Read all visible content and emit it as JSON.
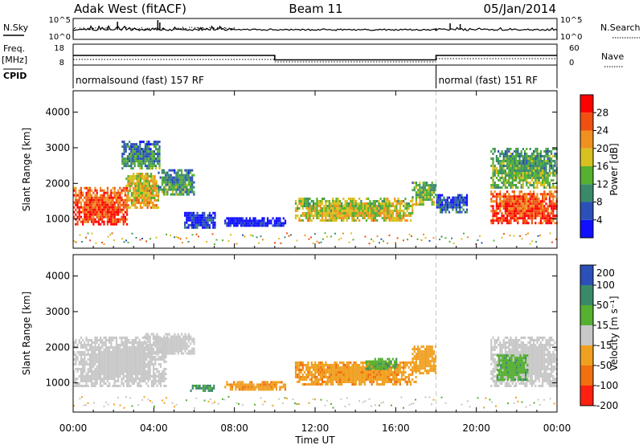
{
  "header": {
    "station": "Adak West (fitACF)",
    "beam": "Beam 11",
    "date": "05/Jan/2014"
  },
  "summary_panels": {
    "nsky_label": "N.Sky",
    "nsearch_label": "N.Search",
    "nsky_ticks": [
      "10^5",
      "10^0"
    ],
    "freq_label_top": "Freq.",
    "freq_label_unit": "[MHz]",
    "freq_ticks": [
      "18",
      "8"
    ],
    "nave_label": "Nave",
    "nave_ticks": [
      "60",
      "0"
    ],
    "cpid_label": "CPID",
    "cpid_segments": [
      {
        "label": "normalsound (fast) 157 RF",
        "start_h": 0,
        "end_h": 18
      },
      {
        "label": "normal (fast) 151 RF",
        "start_h": 18,
        "end_h": 24
      }
    ],
    "freq_steps": [
      {
        "start_h": 0,
        "end_h": 10,
        "mhz": 12.6
      },
      {
        "start_h": 10,
        "end_h": 18,
        "mhz": 10.5
      },
      {
        "start_h": 18,
        "end_h": 24,
        "mhz": 12.6
      }
    ]
  },
  "chart_data": [
    {
      "type": "heatmap",
      "name": "power",
      "ylabel": "Slant Range [km]",
      "xlabel": "Time UT",
      "ylim": [
        180,
        4600
      ],
      "xlim_hours": [
        0,
        24
      ],
      "y_ticks": [
        1000,
        2000,
        3000,
        4000
      ],
      "x_tick_labels": [
        "00:00",
        "04:00",
        "08:00",
        "12:00",
        "16:00",
        "20:00",
        "00:00"
      ],
      "colorbar": {
        "label": "Power [dB]",
        "ticks": [
          4,
          8,
          12,
          16,
          20,
          24,
          28
        ],
        "range": [
          0,
          30
        ],
        "colors": [
          "#1010ff",
          "#2b50b8",
          "#3a8a6a",
          "#55b030",
          "#d8c020",
          "#f09020",
          "#f05010",
          "#ff0000"
        ]
      },
      "regions": [
        {
          "t0": 0.0,
          "t1": 2.7,
          "r0": 850,
          "r1": 1900,
          "level": 27
        },
        {
          "t0": 2.6,
          "t1": 4.2,
          "r0": 1300,
          "r1": 2300,
          "level": 20
        },
        {
          "t0": 2.4,
          "t1": 4.3,
          "r0": 2400,
          "r1": 3200,
          "level": 11
        },
        {
          "t0": 4.2,
          "t1": 6.0,
          "r0": 1700,
          "r1": 2400,
          "level": 12
        },
        {
          "t0": 5.5,
          "t1": 7.0,
          "r0": 750,
          "r1": 1200,
          "level": 6
        },
        {
          "t0": 7.5,
          "t1": 10.5,
          "r0": 800,
          "r1": 1050,
          "level": 4
        },
        {
          "t0": 11.0,
          "t1": 16.8,
          "r0": 950,
          "r1": 1600,
          "level": 18
        },
        {
          "t0": 16.8,
          "t1": 18.0,
          "r0": 1400,
          "r1": 2050,
          "level": 16
        },
        {
          "t0": 18.0,
          "t1": 19.5,
          "r0": 1200,
          "r1": 1700,
          "level": 8
        },
        {
          "t0": 20.7,
          "t1": 24.0,
          "r0": 900,
          "r1": 1800,
          "level": 27
        },
        {
          "t0": 20.7,
          "t1": 24.0,
          "r0": 1900,
          "r1": 3000,
          "level": 14
        }
      ]
    },
    {
      "type": "heatmap",
      "name": "velocity",
      "ylabel": "Slant Range [km]",
      "xlabel": "Time UT",
      "ylim": [
        180,
        4600
      ],
      "xlim_hours": [
        0,
        24
      ],
      "y_ticks": [
        1000,
        2000,
        3000,
        4000
      ],
      "x_tick_labels": [
        "00:00",
        "04:00",
        "08:00",
        "12:00",
        "16:00",
        "20:00",
        "00:00"
      ],
      "colorbar": {
        "label": "Velocity [m s⁻¹]",
        "ticks": [
          200,
          100,
          50,
          15,
          -15,
          -50,
          -100,
          -200
        ],
        "colors": [
          "#2b50b8",
          "#3a8a6a",
          "#55b030",
          "#c8c8c8",
          "#f0a020",
          "#f07010",
          "#ff2010"
        ]
      },
      "regions": [
        {
          "t0": 0.0,
          "t1": 4.6,
          "r0": 900,
          "r1": 2300,
          "vel": 0
        },
        {
          "t0": 3.5,
          "t1": 6.0,
          "r0": 1800,
          "r1": 2400,
          "vel": 0
        },
        {
          "t0": 5.8,
          "t1": 7.0,
          "r0": 800,
          "r1": 950,
          "vel": 60
        },
        {
          "t0": 7.5,
          "t1": 10.5,
          "r0": 780,
          "r1": 1050,
          "vel": -40
        },
        {
          "t0": 11.0,
          "t1": 17.0,
          "r0": 950,
          "r1": 1600,
          "vel": -40
        },
        {
          "t0": 14.5,
          "t1": 16.0,
          "r0": 1400,
          "r1": 1700,
          "vel": 45
        },
        {
          "t0": 16.8,
          "t1": 18.0,
          "r0": 1300,
          "r1": 2050,
          "vel": -30
        },
        {
          "t0": 20.7,
          "t1": 24.0,
          "r0": 900,
          "r1": 2300,
          "vel": 0
        },
        {
          "t0": 21.0,
          "t1": 22.5,
          "r0": 1100,
          "r1": 1800,
          "vel": 40
        }
      ]
    }
  ]
}
